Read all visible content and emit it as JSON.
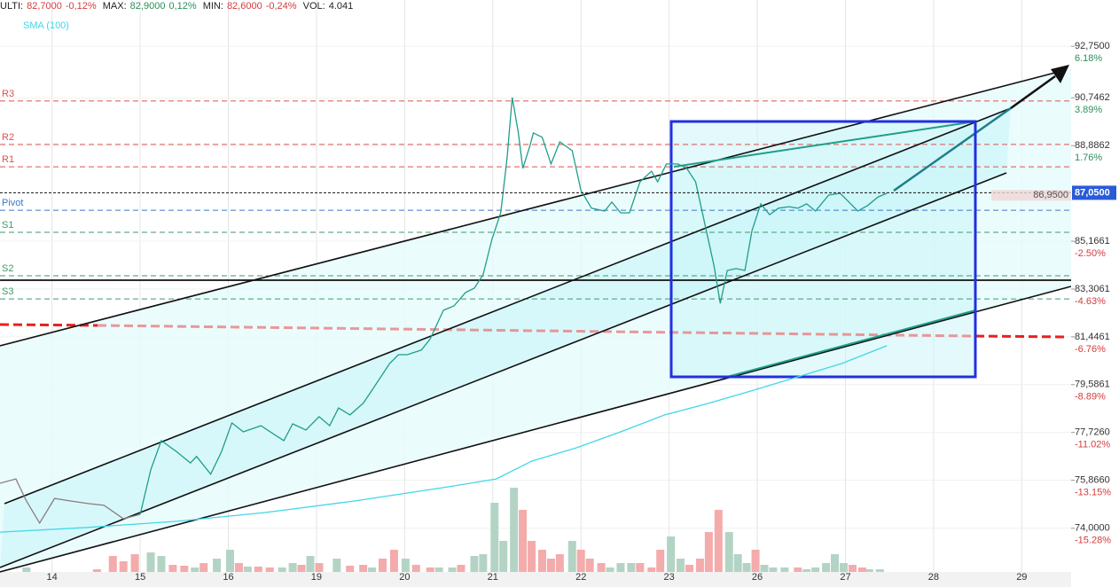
{
  "header": {
    "last_label": "ULTI:",
    "last": "82,7000",
    "last_change": "-0,12%",
    "max_label": "MAX:",
    "max": "82,9000",
    "max_change": "0,12%",
    "min_label": "MIN:",
    "min": "82,6000",
    "min_change": "-0,24%",
    "vol_label": "VOL:",
    "vol": "4.041"
  },
  "chart_data": {
    "type": "line",
    "sma_label": "SMA (100)",
    "xlim": [
      -0.59,
      11.56
    ],
    "ylim": [
      72.3,
      94.55
    ],
    "grid": true,
    "xticks": [
      {
        "value": 0,
        "label": "14"
      },
      {
        "value": 1,
        "label": "15"
      },
      {
        "value": 2,
        "label": "16"
      },
      {
        "value": 3,
        "label": "19"
      },
      {
        "value": 4,
        "label": "20"
      },
      {
        "value": 5,
        "label": "21"
      },
      {
        "value": 6,
        "label": "22"
      },
      {
        "value": 7,
        "label": "23"
      },
      {
        "value": 8,
        "label": "26"
      },
      {
        "value": 9,
        "label": "27"
      },
      {
        "value": 10,
        "label": "28"
      },
      {
        "value": 11,
        "label": "29"
      }
    ],
    "yticks": [
      {
        "value": 92.75,
        "label": "92,7500"
      },
      {
        "value": 90.7462,
        "label": "90,7462"
      },
      {
        "value": 88.8862,
        "label": "88,8862"
      },
      {
        "value": 85.1661,
        "label": "85,1661"
      },
      {
        "value": 83.3061,
        "label": "83,3061"
      },
      {
        "value": 81.4461,
        "label": "81,4461"
      },
      {
        "value": 79.5861,
        "label": "79,5861"
      },
      {
        "value": 77.726,
        "label": "77,7260"
      },
      {
        "value": 75.866,
        "label": "75,8660"
      },
      {
        "value": 74.0,
        "label": "74,0000"
      }
    ],
    "ytick_changes": [
      "6.18%",
      "3.89%",
      "1.76%",
      "-2.50%",
      "-4.63%",
      "-6.76%",
      "-8.89%",
      "-11.02%",
      "-13.15%",
      "-15.28%"
    ],
    "pivots": [
      {
        "label": "R3",
        "value": 90.62,
        "color": "#d9534f"
      },
      {
        "label": "R2",
        "value": 88.93,
        "color": "#d9534f"
      },
      {
        "label": "R1",
        "value": 88.06,
        "color": "#d9534f"
      },
      {
        "label": "Pivot",
        "value": 86.37,
        "color": "#3a78c9"
      },
      {
        "label": "S1",
        "value": 85.51,
        "color": "#3b9a6b"
      },
      {
        "label": "S2",
        "value": 83.82,
        "color": "#3b9a6b"
      },
      {
        "label": "S3",
        "value": 82.92,
        "color": "#3b9a6b"
      }
    ],
    "support_line": 83.65,
    "last_price": {
      "value": 87.05,
      "label": "87,0500"
    },
    "prev_price": {
      "value": 86.95,
      "label": "86,9500"
    },
    "series": [
      {
        "color": "#8a7d7d",
        "x": [
          -0.59,
          -0.41,
          -0.29,
          -0.14,
          0.03,
          0.21,
          0.41,
          0.59,
          0.81,
          1.0
        ],
        "values": [
          75.75,
          75.92,
          75.06,
          74.2,
          75.16,
          75.06,
          74.96,
          74.89,
          74.37,
          74.54
        ]
      },
      {
        "color": "#1f9e8a",
        "x": [
          1.0,
          1.12,
          1.24,
          1.42,
          1.57,
          1.64,
          1.8,
          1.92,
          2.04,
          2.17,
          2.37,
          2.52,
          2.63,
          2.73,
          2.88,
          3.03,
          3.15,
          3.25,
          3.38,
          3.53,
          3.63,
          3.73,
          3.83,
          3.93,
          4.03,
          4.19,
          4.29,
          4.44,
          4.56,
          4.69,
          4.79,
          4.89,
          4.99,
          5.09,
          5.16,
          5.22,
          5.29,
          5.34,
          5.42,
          5.46,
          5.56,
          5.66,
          5.76,
          5.9,
          6.0,
          6.12,
          6.27,
          6.35,
          6.45,
          6.55,
          6.67,
          6.8,
          6.87,
          6.97,
          7.1,
          7.2,
          7.3,
          7.41,
          7.51,
          7.58,
          7.66,
          7.76,
          7.86,
          7.94,
          8.04,
          8.14,
          8.24,
          8.36,
          8.46,
          8.56,
          8.66,
          8.81,
          8.94,
          9.04,
          9.14,
          9.25,
          9.37,
          9.47
        ],
        "values": [
          74.54,
          76.27,
          77.41,
          76.96,
          76.54,
          76.79,
          76.1,
          76.96,
          78.1,
          77.75,
          77.99,
          77.65,
          77.41,
          78.06,
          77.82,
          78.34,
          77.99,
          78.68,
          78.41,
          78.86,
          79.37,
          79.89,
          80.41,
          80.75,
          80.75,
          80.93,
          81.37,
          82.48,
          82.65,
          83.17,
          83.34,
          83.86,
          85.24,
          86.27,
          88.34,
          90.76,
          89.38,
          88.0,
          88.86,
          89.38,
          89.21,
          88.17,
          89.03,
          88.69,
          87.14,
          86.45,
          86.34,
          86.69,
          86.27,
          86.27,
          87.48,
          87.89,
          87.48,
          88.17,
          88.17,
          88.0,
          87.48,
          85.76,
          84.2,
          82.75,
          84.03,
          84.1,
          84.03,
          85.58,
          86.62,
          86.2,
          86.45,
          86.51,
          86.45,
          86.62,
          86.34,
          86.96,
          87.03,
          86.69,
          86.34,
          86.55,
          86.89,
          87.03
        ]
      },
      {
        "color": "#3fd8e8",
        "x": [
          -0.59,
          0.41,
          1.42,
          2.42,
          3.43,
          4.44,
          5.04,
          5.44,
          5.95,
          6.45,
          6.95,
          7.45,
          7.96,
          8.46,
          8.96,
          9.47
        ],
        "values": [
          73.85,
          74.03,
          74.27,
          74.61,
          75.06,
          75.58,
          75.92,
          76.61,
          77.13,
          77.75,
          78.41,
          78.86,
          79.37,
          79.89,
          80.41,
          81.1
        ]
      }
    ],
    "vlim": [
      0,
      200
    ],
    "volume": [
      {
        "color": "#b3d4c4",
        "x": [
          -0.29,
          1.12,
          1.24,
          1.62,
          1.87,
          2.02,
          2.22,
          2.61,
          2.73,
          2.93,
          3.23,
          3.63,
          4.01,
          4.39,
          4.54,
          4.79,
          4.89,
          5.02,
          5.12,
          5.24,
          5.9,
          6.33,
          6.45,
          6.57,
          7.02,
          7.13,
          7.68,
          7.78,
          7.88,
          8.08,
          8.18,
          8.31,
          8.56,
          8.66,
          8.78,
          8.88,
          8.98,
          9.27,
          9.39
        ],
        "values": [
          5,
          22,
          18,
          5,
          15,
          25,
          6,
          5,
          10,
          18,
          15,
          5,
          15,
          5,
          5,
          18,
          20,
          78,
          35,
          95,
          35,
          5,
          10,
          10,
          40,
          15,
          45,
          20,
          10,
          8,
          5,
          5,
          3,
          5,
          10,
          20,
          10,
          3,
          3
        ]
      },
      {
        "color": "#f4abab",
        "x": [
          0.51,
          0.69,
          0.81,
          0.94,
          1.37,
          1.5,
          1.72,
          2.12,
          2.34,
          2.47,
          2.83,
          3.03,
          3.38,
          3.53,
          3.75,
          3.88,
          4.13,
          4.29,
          4.64,
          5.34,
          5.44,
          5.56,
          5.66,
          5.76,
          6.0,
          6.1,
          6.23,
          6.67,
          6.8,
          6.9,
          7.23,
          7.35,
          7.45,
          7.56,
          7.98,
          8.46,
          9.08,
          9.19
        ],
        "values": [
          3,
          18,
          12,
          20,
          8,
          7,
          10,
          10,
          6,
          5,
          8,
          10,
          7,
          8,
          15,
          25,
          8,
          5,
          8,
          70,
          35,
          25,
          15,
          20,
          25,
          15,
          10,
          10,
          5,
          25,
          8,
          15,
          45,
          70,
          25,
          5,
          8,
          5
        ]
      }
    ]
  }
}
